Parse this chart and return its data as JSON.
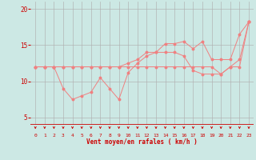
{
  "xlabel": "Vent moyen/en rafales ( km/h )",
  "background_color": "#cce8e4",
  "grid_color": "#b0b0b0",
  "line_color": "#f08080",
  "text_color": "#cc0000",
  "xlim": [
    -0.5,
    23.5
  ],
  "ylim": [
    4,
    21
  ],
  "yticks": [
    5,
    10,
    15,
    20
  ],
  "xticks": [
    0,
    1,
    2,
    3,
    4,
    5,
    6,
    7,
    8,
    9,
    10,
    11,
    12,
    13,
    14,
    15,
    16,
    17,
    18,
    19,
    20,
    21,
    22,
    23
  ],
  "line1_y": [
    12,
    12,
    12,
    12,
    12,
    12,
    12,
    12,
    12,
    12,
    12.5,
    13,
    14,
    14,
    15.2,
    15.2,
    15.5,
    14.5,
    15.5,
    13,
    13,
    13,
    16.5,
    18.2
  ],
  "line2_y": [
    12,
    12,
    12,
    9,
    7.5,
    8,
    8.5,
    10.5,
    9,
    7.5,
    11.2,
    12.5,
    13.5,
    14,
    14,
    14,
    13.5,
    11.5,
    11,
    11,
    11,
    12,
    13,
    18.2
  ],
  "line3_y": [
    12,
    12,
    12,
    12,
    12,
    12,
    12,
    12,
    12,
    12,
    12,
    12,
    12,
    12,
    12,
    12,
    12,
    12,
    12,
    12,
    11,
    12,
    12,
    18.2
  ],
  "marker_size": 1.8,
  "line_width": 0.7
}
